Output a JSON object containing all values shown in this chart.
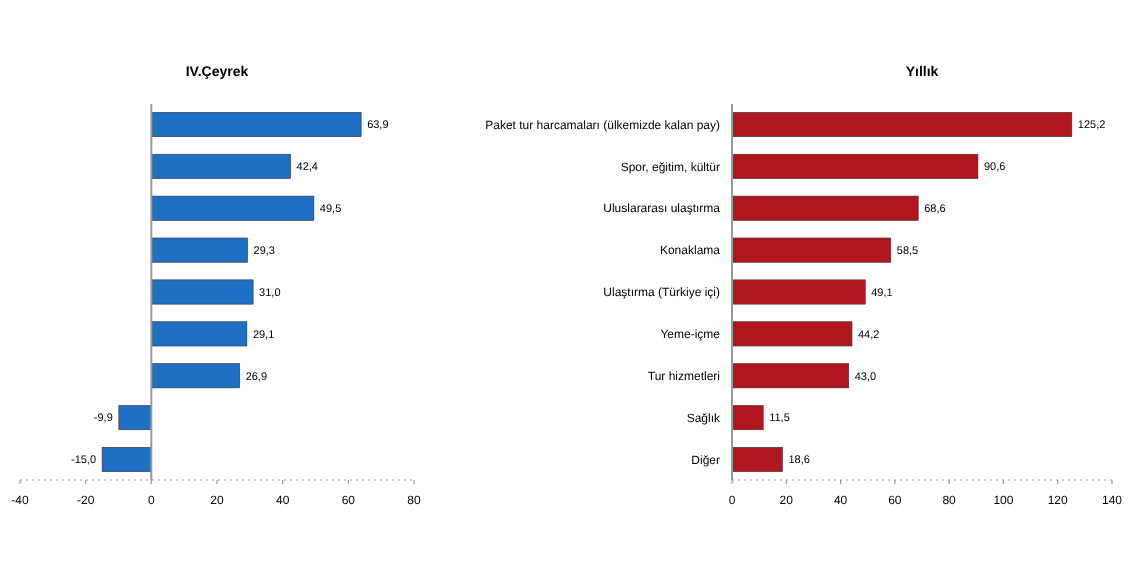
{
  "chart_data": [
    {
      "type": "bar",
      "orientation": "horizontal",
      "title": "IV.Çeyrek",
      "categories": [
        null,
        null,
        null,
        null,
        null,
        null,
        null,
        null,
        null
      ],
      "values": [
        63.9,
        42.4,
        49.5,
        29.3,
        31.0,
        29.1,
        26.9,
        -9.9,
        -15.0
      ],
      "value_labels": [
        "63,9",
        "42,4",
        "49,5",
        "29,3",
        "31,0",
        "29,1",
        "26,9",
        "-9,9",
        "-15,0"
      ],
      "color": "#1f6fc5",
      "xlim": [
        -40,
        80
      ],
      "xticks": [
        -40,
        -20,
        0,
        20,
        40,
        60,
        80
      ],
      "tick_labels": "x"
    },
    {
      "type": "bar",
      "orientation": "horizontal",
      "title": "Yıllık",
      "categories": [
        "Paket tur harcamaları (ülkemizde kalan pay)",
        "Spor, eğitim, kültür",
        "Uluslararası ulaştırma",
        "Konaklama",
        "Ulaştırma (Türkiye içi)",
        "Yeme-içme",
        "Tur hizmetleri",
        "Sağlık",
        "Diğer"
      ],
      "values": [
        125.2,
        90.6,
        68.6,
        58.5,
        49.1,
        44.2,
        43.0,
        11.5,
        18.6
      ],
      "value_labels": [
        "125,2",
        "90,6",
        "68,6",
        "58,5",
        "49,1",
        "44,2",
        "43,0",
        "11,5",
        "18,6"
      ],
      "color": "#b0171f",
      "xlim": [
        0,
        140
      ],
      "xticks": [
        0,
        20,
        40,
        60,
        80,
        100,
        120,
        140
      ]
    }
  ]
}
